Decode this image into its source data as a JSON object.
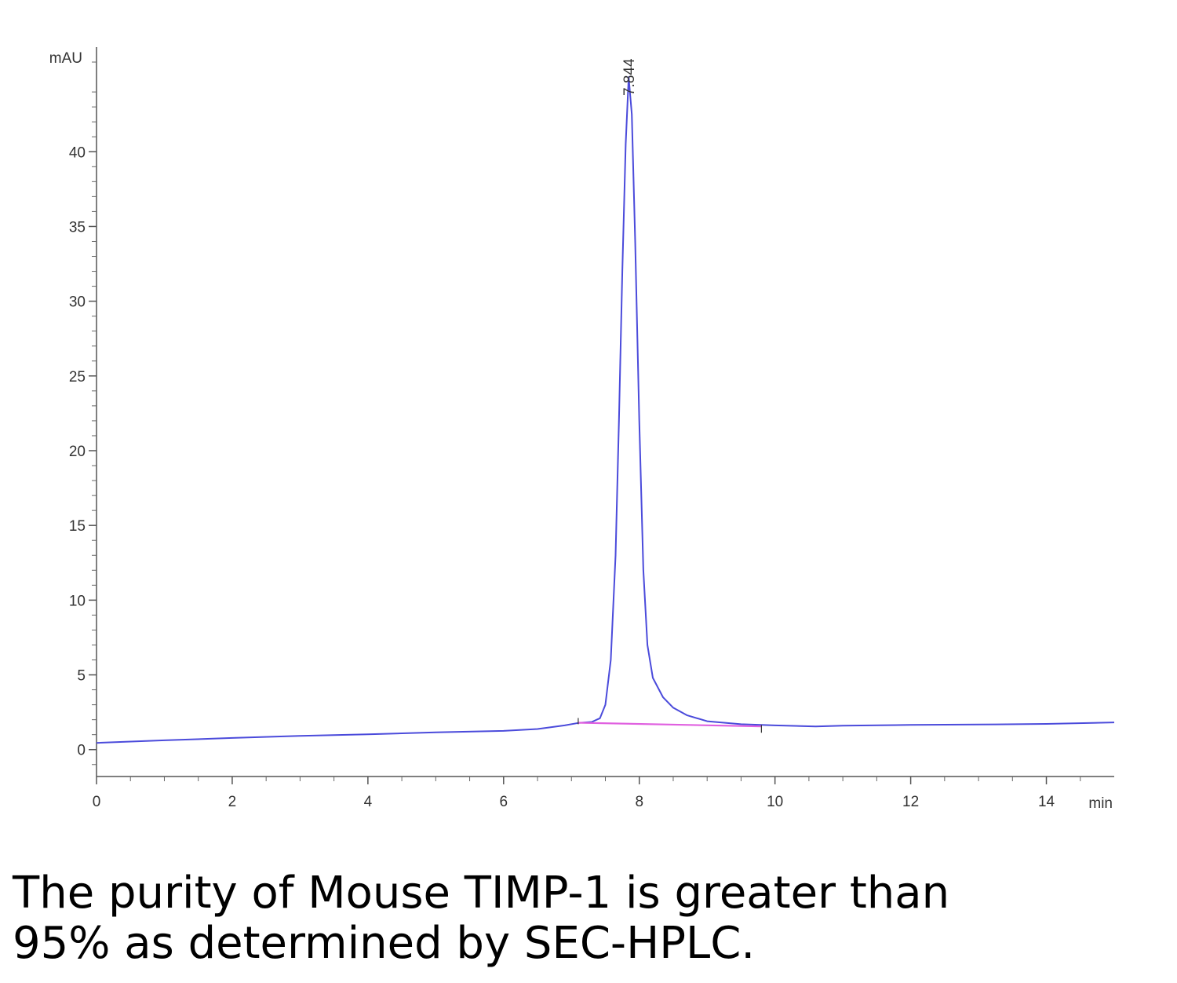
{
  "chart_data": {
    "type": "line",
    "x_unit_label": "min",
    "y_unit_label": "mAU",
    "xlim": [
      0,
      15
    ],
    "ylim": [
      -1.8,
      47
    ],
    "x_ticks": [
      0,
      2,
      4,
      6,
      8,
      10,
      12,
      14
    ],
    "y_ticks": [
      0,
      5,
      10,
      15,
      20,
      25,
      30,
      35,
      40
    ],
    "series": [
      {
        "role": "signal",
        "color": "#4b4bdb",
        "points": [
          [
            0,
            0.45
          ],
          [
            1,
            0.62
          ],
          [
            2,
            0.78
          ],
          [
            3,
            0.92
          ],
          [
            4,
            1.02
          ],
          [
            5,
            1.15
          ],
          [
            6,
            1.25
          ],
          [
            6.5,
            1.38
          ],
          [
            6.9,
            1.62
          ],
          [
            7.1,
            1.78
          ],
          [
            7.3,
            1.85
          ],
          [
            7.42,
            2.1
          ],
          [
            7.5,
            3.0
          ],
          [
            7.58,
            6.0
          ],
          [
            7.65,
            13.0
          ],
          [
            7.7,
            22.0
          ],
          [
            7.75,
            32.0
          ],
          [
            7.8,
            40.5
          ],
          [
            7.844,
            45.0
          ],
          [
            7.89,
            42.5
          ],
          [
            7.94,
            34.0
          ],
          [
            8.0,
            22.0
          ],
          [
            8.06,
            12.0
          ],
          [
            8.12,
            7.0
          ],
          [
            8.2,
            4.8
          ],
          [
            8.35,
            3.5
          ],
          [
            8.5,
            2.8
          ],
          [
            8.7,
            2.3
          ],
          [
            9.0,
            1.9
          ],
          [
            9.5,
            1.7
          ],
          [
            10.0,
            1.62
          ],
          [
            10.6,
            1.55
          ],
          [
            11.0,
            1.6
          ],
          [
            12.0,
            1.65
          ],
          [
            13.0,
            1.68
          ],
          [
            14.0,
            1.72
          ],
          [
            15.0,
            1.82
          ]
        ]
      },
      {
        "role": "baseline",
        "color": "#e060e0",
        "points": [
          [
            7.1,
            1.8
          ],
          [
            9.8,
            1.55
          ]
        ]
      }
    ],
    "annotations": [
      {
        "x": 7.844,
        "label": "7.844"
      }
    ]
  },
  "caption": {
    "line1": "The purity of Mouse TIMP-1 is greater than",
    "line2": "95% as determined by SEC-HPLC."
  }
}
